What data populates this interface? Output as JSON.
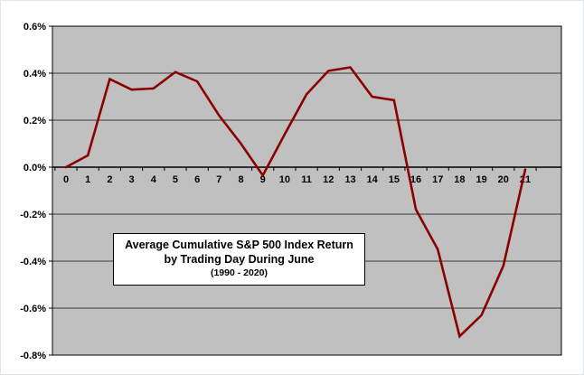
{
  "chart_data": {
    "type": "line",
    "annotation": {
      "line1": "Average Cumulative S&P 500  Index Return",
      "line2": "by Trading Day During June",
      "line3": "(1990 - 2020)"
    },
    "xlabel": "",
    "ylabel": "",
    "x": [
      "0",
      "1",
      "2",
      "3",
      "4",
      "5",
      "6",
      "7",
      "8",
      "9",
      "10",
      "11",
      "12",
      "13",
      "14",
      "15",
      "16",
      "17",
      "18",
      "19",
      "20",
      "21"
    ],
    "values": [
      0.0,
      0.05,
      0.375,
      0.33,
      0.335,
      0.405,
      0.365,
      0.22,
      0.1,
      -0.035,
      0.14,
      0.31,
      0.41,
      0.425,
      0.3,
      0.285,
      -0.18,
      -0.35,
      -0.72,
      -0.63,
      -0.42,
      -0.01
    ],
    "ylim": [
      -0.8,
      0.6
    ],
    "ytick_step": 0.2,
    "ytick_labels": [
      "0.6%",
      "0.4%",
      "0.2%",
      "0.0%",
      "-0.2%",
      "-0.4%",
      "-0.6%",
      "-0.8%"
    ],
    "grid": true,
    "legend": "none",
    "line_color": "#8B0000",
    "plot_bg": "#C0C0C0",
    "grid_color": "#3a3a3a",
    "axis_color": "#000000",
    "label_color": "#000000"
  }
}
